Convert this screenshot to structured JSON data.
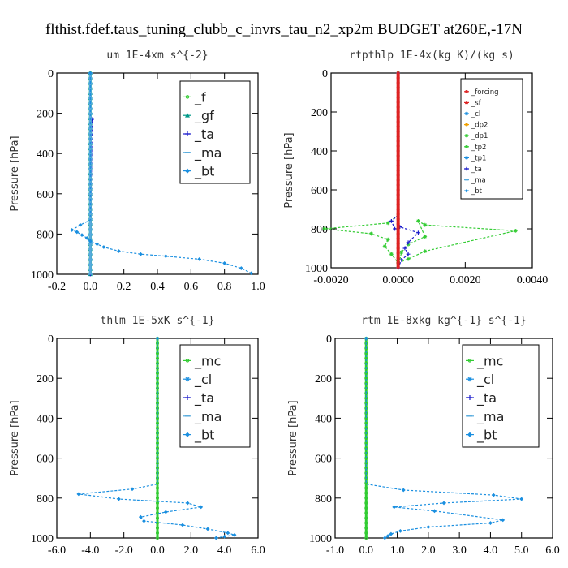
{
  "suptitle": "flthist.fdef.taus_tuning_clubb_c_invrs_tau_n2_xp2m  BUDGET at260E,-17N",
  "chart_data": [
    {
      "type": "line",
      "title": "um  1E-4xm s^{-2}",
      "ylabel": "Pressure [hPa]",
      "xlim": [
        -0.2,
        1.0
      ],
      "ylim": [
        1000,
        0
      ],
      "xticks": [
        "-0.2",
        "0.0",
        "0.2",
        "0.4",
        "0.6",
        "0.8",
        "1.0"
      ],
      "yticks": [
        "0",
        "200",
        "400",
        "600",
        "800",
        "1000"
      ],
      "legend": [
        "_f",
        "_gf",
        "_ta",
        "_ma",
        "_bt"
      ],
      "series": [
        {
          "name": "_f",
          "color": "#33cc33",
          "x": [
            0,
            0
          ],
          "y": [
            0,
            1000
          ]
        },
        {
          "name": "_gf",
          "color": "#009988",
          "x": [
            0,
            0
          ],
          "y": [
            0,
            1000
          ]
        },
        {
          "name": "_ta",
          "color": "#1a1acc",
          "x": [
            0,
            0,
            0.01,
            0
          ],
          "y": [
            0,
            210,
            230,
            1000
          ]
        },
        {
          "name": "_ma",
          "color": "#55aadd",
          "x": [
            0,
            0
          ],
          "y": [
            0,
            1000
          ]
        },
        {
          "name": "_bt",
          "color": "#1a8fe0",
          "x": [
            0,
            0,
            -0.06,
            -0.11,
            -0.08,
            -0.05,
            -0.02,
            0,
            0.04,
            0.08,
            0.17,
            0.3,
            0.45,
            0.65,
            0.8,
            0.9,
            0.96
          ],
          "y": [
            0,
            730,
            755,
            780,
            790,
            805,
            820,
            835,
            850,
            865,
            885,
            900,
            910,
            925,
            945,
            970,
            995
          ]
        }
      ]
    },
    {
      "type": "line",
      "title": "rtpthlp  1E-4x(kg K)/(kg s)",
      "ylabel": "Pressure [hPa]",
      "xlim": [
        -0.002,
        0.004
      ],
      "ylim": [
        1000,
        0
      ],
      "xticks": [
        "-0.0020",
        "0.0000",
        "0.0020",
        "0.0040"
      ],
      "yticks": [
        "0",
        "200",
        "400",
        "600",
        "800",
        "1000"
      ],
      "legend": [
        "_forcing",
        "_sf",
        "_cl",
        "_dp2",
        "_dp1",
        "_tp2",
        "_tp1",
        "_ta",
        "_ma",
        "_bt"
      ],
      "series": [
        {
          "name": "_dp1",
          "color": "#33cc33",
          "x": [
            0,
            0,
            -0.0003,
            -0.0022,
            -0.0008,
            -0.0003,
            -0.0004,
            -0.0002,
            0,
            0.0003,
            0.0008,
            0.0035,
            0.0008,
            0.0006,
            0.0008,
            0.0003,
            0.0001,
            0
          ],
          "y": [
            0,
            730,
            770,
            800,
            825,
            855,
            890,
            930,
            975,
            955,
            915,
            810,
            780,
            760,
            840,
            880,
            920,
            1000
          ]
        },
        {
          "name": "_ta",
          "color": "#1a1acc",
          "x": [
            0,
            0,
            -0.0002,
            -0.0001,
            5e-05,
            0.0006,
            0.0003,
            0.0002,
            0.0003,
            0.0001,
            0
          ],
          "y": [
            0,
            730,
            760,
            800,
            790,
            820,
            870,
            900,
            930,
            960,
            1000
          ]
        },
        {
          "name": "_forcing",
          "color": "#dd2222",
          "x": [
            0,
            0
          ],
          "y": [
            0,
            1000
          ]
        }
      ]
    },
    {
      "type": "line",
      "title": "thlm  1E-5xK s^{-1}",
      "ylabel": "Pressure [hPa]",
      "xlim": [
        -6.0,
        6.0
      ],
      "ylim": [
        1000,
        0
      ],
      "xticks": [
        "-6.0",
        "-4.0",
        "-2.0",
        "0.0",
        "2.0",
        "4.0",
        "6.0"
      ],
      "yticks": [
        "0",
        "200",
        "400",
        "600",
        "800",
        "1000"
      ],
      "legend": [
        "_mc",
        "_cl",
        "_ta",
        "_ma",
        "_bt"
      ],
      "series": [
        {
          "name": "_mc",
          "color": "#33cc33",
          "x": [
            0,
            0
          ],
          "y": [
            0,
            1000
          ]
        },
        {
          "name": "_bt",
          "color": "#1a8fe0",
          "x": [
            0,
            0,
            -1.5,
            -4.7,
            -2.3,
            1.8,
            2.6,
            0.5,
            -1.0,
            -0.8,
            1.5,
            3.0,
            4.2,
            4.6,
            4.0,
            3.5
          ],
          "y": [
            0,
            730,
            755,
            780,
            805,
            825,
            845,
            870,
            895,
            915,
            935,
            955,
            975,
            985,
            993,
            1000
          ]
        }
      ]
    },
    {
      "type": "line",
      "title": "rtm  1E-8xkg kg^{-1} s^{-1}",
      "ylabel": "Pressure [hPa]",
      "xlim": [
        -1.0,
        6.0
      ],
      "ylim": [
        1000,
        0
      ],
      "xticks": [
        "-1.0",
        "0.0",
        "1.0",
        "2.0",
        "3.0",
        "4.0",
        "5.0",
        "6.0"
      ],
      "yticks": [
        "0",
        "200",
        "400",
        "600",
        "800",
        "1000"
      ],
      "legend": [
        "_mc",
        "_cl",
        "_ta",
        "_ma",
        "_bt"
      ],
      "series": [
        {
          "name": "_mc",
          "color": "#33cc33",
          "x": [
            0,
            0
          ],
          "y": [
            0,
            1000
          ]
        },
        {
          "name": "_bt",
          "color": "#1a8fe0",
          "x": [
            0,
            0,
            1.2,
            4.1,
            5.0,
            2.5,
            0.9,
            2.2,
            4.4,
            4.0,
            2.0,
            1.1,
            0.8,
            0.7,
            0.6
          ],
          "y": [
            0,
            730,
            760,
            785,
            805,
            825,
            845,
            865,
            910,
            925,
            945,
            965,
            980,
            990,
            1000
          ]
        }
      ]
    }
  ]
}
